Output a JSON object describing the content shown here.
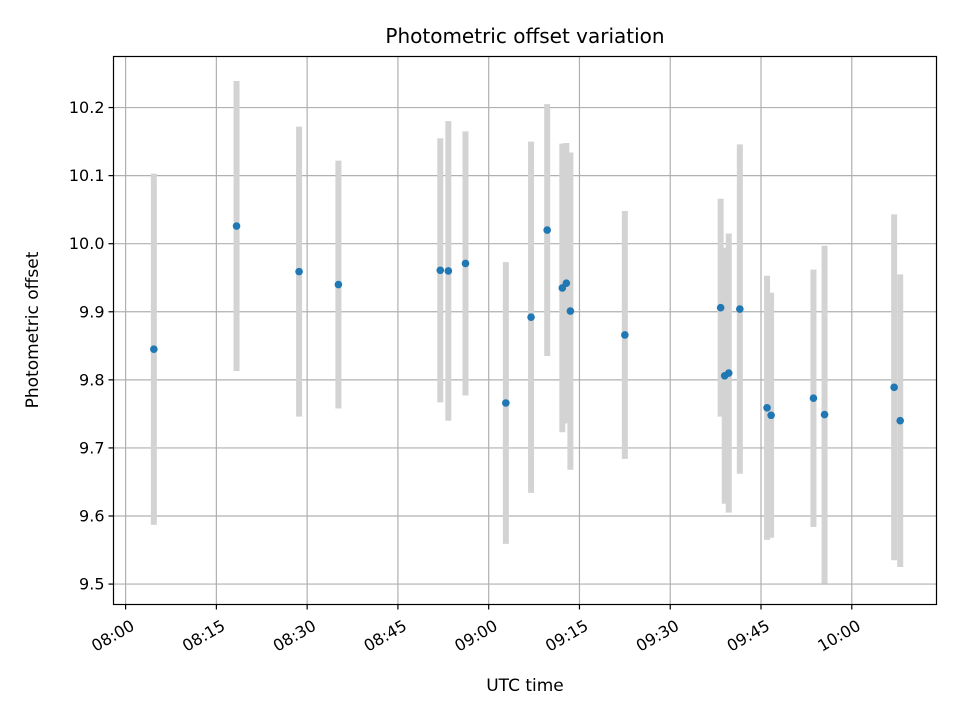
{
  "chart_data": {
    "type": "scatter",
    "title": "Photometric offset variation",
    "xlabel": "UTC time",
    "ylabel": "Photometric offset",
    "grid": true,
    "x_ticks": [
      "08:00",
      "08:15",
      "08:30",
      "08:45",
      "09:00",
      "09:15",
      "09:30",
      "09:45",
      "10:00"
    ],
    "y_ticks": [
      "9.5",
      "9.6",
      "9.7",
      "9.8",
      "9.9",
      "10.0",
      "10.1",
      "10.2"
    ],
    "xlim": [
      "07:58",
      "10:14"
    ],
    "ylim": [
      9.47,
      10.275
    ],
    "colors": {
      "point": "#1f77b4",
      "errorbar": "#d3d3d3",
      "grid": "#b0b0b0"
    },
    "series": [
      {
        "points": [
          {
            "x": "08:04:40",
            "y": 9.845,
            "err": 0.258
          },
          {
            "x": "08:18:20",
            "y": 10.026,
            "err": 0.213
          },
          {
            "x": "08:28:40",
            "y": 9.959,
            "err": 0.213
          },
          {
            "x": "08:35:10",
            "y": 9.94,
            "err": 0.182
          },
          {
            "x": "08:52:00",
            "y": 9.961,
            "err": 0.194
          },
          {
            "x": "08:53:20",
            "y": 9.96,
            "err": 0.22
          },
          {
            "x": "08:56:10",
            "y": 9.971,
            "err": 0.194
          },
          {
            "x": "09:02:50",
            "y": 9.766,
            "err": 0.207
          },
          {
            "x": "09:07:00",
            "y": 9.892,
            "err": 0.258
          },
          {
            "x": "09:09:40",
            "y": 10.02,
            "err": 0.185
          },
          {
            "x": "09:12:10",
            "y": 9.935,
            "err": 0.212
          },
          {
            "x": "09:12:50",
            "y": 9.942,
            "err": 0.206
          },
          {
            "x": "09:13:30",
            "y": 9.901,
            "err": 0.233
          },
          {
            "x": "09:22:30",
            "y": 9.866,
            "err": 0.182
          },
          {
            "x": "09:38:20",
            "y": 9.906,
            "err": 0.16
          },
          {
            "x": "09:39:00",
            "y": 9.806,
            "err": 0.188
          },
          {
            "x": "09:39:40",
            "y": 9.81,
            "err": 0.205
          },
          {
            "x": "09:41:30",
            "y": 9.904,
            "err": 0.242
          },
          {
            "x": "09:46:00",
            "y": 9.759,
            "err": 0.194
          },
          {
            "x": "09:46:40",
            "y": 9.748,
            "err": 0.18
          },
          {
            "x": "09:53:40",
            "y": 9.773,
            "err": 0.189
          },
          {
            "x": "09:55:30",
            "y": 9.749,
            "err": 0.248
          },
          {
            "x": "10:07:00",
            "y": 9.789,
            "err": 0.254
          },
          {
            "x": "10:08:00",
            "y": 9.74,
            "err": 0.215
          }
        ]
      }
    ]
  }
}
